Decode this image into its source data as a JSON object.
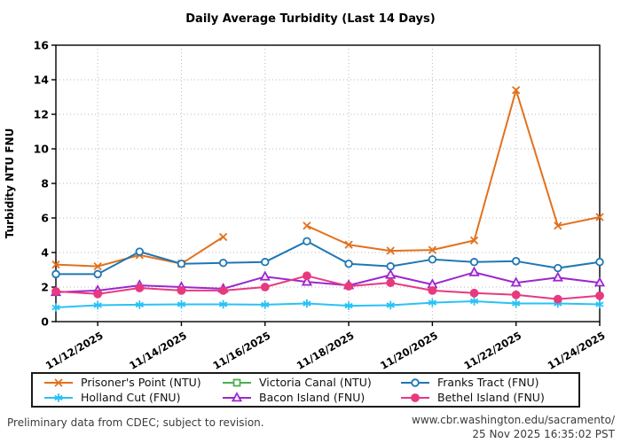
{
  "title": "Daily Average Turbidity (Last 14 Days)",
  "footer": {
    "disclaimer": "Preliminary data from CDEC; subject to revision.",
    "url": "www.cbr.washington.edu/sacramento/",
    "timestamp": "25 Nov 2025 16:35:02 PST"
  },
  "colors": {
    "axis": "#000000",
    "grid": "#b8b8b8",
    "orange": "#e2711d",
    "green": "#4caf50",
    "blue": "#1f77b4",
    "cyan": "#29c2f6",
    "purple": "#9c27cf",
    "pink": "#e8397f"
  },
  "chart_data": {
    "type": "line",
    "title": "Daily Average Turbidity (Last 14 Days)",
    "xlabel": "",
    "ylabel": "Turbidity NTU FNU",
    "ylim": [
      0,
      16
    ],
    "ytick_step": 2,
    "grid": "dotted",
    "legend_position": "bottom-box",
    "x_dates": [
      "11/11/2025",
      "11/12/2025",
      "11/13/2025",
      "11/14/2025",
      "11/15/2025",
      "11/16/2025",
      "11/17/2025",
      "11/18/2025",
      "11/19/2025",
      "11/20/2025",
      "11/21/2025",
      "11/22/2025",
      "11/23/2025",
      "11/24/2025"
    ],
    "xtick_indices": [
      1,
      3,
      5,
      7,
      9,
      11,
      13
    ],
    "xtick_labels": [
      "11/12/2025",
      "11/14/2025",
      "11/16/2025",
      "11/18/2025",
      "11/20/2025",
      "11/22/2025",
      "11/24/2025"
    ],
    "series": [
      {
        "name": "Prisoner's Point (NTU)",
        "color": "#e2711d",
        "marker": "x",
        "values": [
          3.3,
          3.2,
          3.85,
          3.35,
          4.9,
          null,
          5.55,
          4.45,
          4.1,
          4.15,
          4.7,
          13.4,
          5.55,
          6.05
        ]
      },
      {
        "name": "Victoria Canal (NTU)",
        "color": "#4caf50",
        "marker": "square-open",
        "values": [
          null,
          null,
          null,
          null,
          null,
          null,
          null,
          null,
          null,
          null,
          null,
          null,
          null,
          null
        ]
      },
      {
        "name": "Franks Tract (FNU)",
        "color": "#1f77b4",
        "marker": "circle-open",
        "values": [
          2.75,
          2.75,
          4.05,
          3.35,
          3.4,
          3.45,
          4.65,
          3.35,
          3.2,
          3.6,
          3.45,
          3.5,
          3.1,
          3.45
        ]
      },
      {
        "name": "Holland Cut (FNU)",
        "color": "#29c2f6",
        "marker": "asterisk",
        "values": [
          0.82,
          0.95,
          0.98,
          1.0,
          1.0,
          0.98,
          1.05,
          0.92,
          0.95,
          1.1,
          1.18,
          1.05,
          1.05,
          1.0
        ]
      },
      {
        "name": "Bacon Island (FNU)",
        "color": "#9c27cf",
        "marker": "triangle-open",
        "values": [
          1.7,
          1.8,
          2.1,
          2.0,
          1.9,
          2.6,
          2.3,
          2.1,
          2.7,
          2.15,
          2.85,
          2.25,
          2.55,
          2.25
        ]
      },
      {
        "name": "Bethel Island (FNU)",
        "color": "#e8397f",
        "marker": "circle-filled",
        "values": [
          1.75,
          1.6,
          1.95,
          1.8,
          1.8,
          2.0,
          2.65,
          2.05,
          2.25,
          1.8,
          1.65,
          1.55,
          1.3,
          1.5
        ]
      }
    ]
  }
}
